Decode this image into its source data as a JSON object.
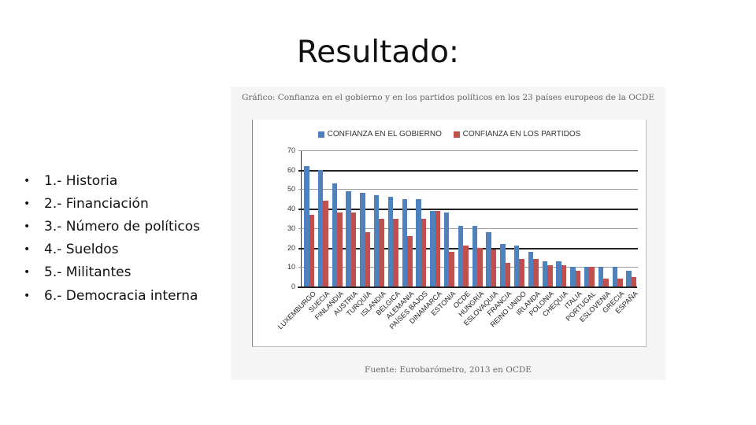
{
  "slide": {
    "title": "Resultado:",
    "bullets": [
      "1.- Historia",
      "2.- Financiación",
      "3.- Número de políticos",
      "4.- Sueldos",
      "5.- Militantes",
      "6.- Democracia interna"
    ]
  },
  "figure": {
    "caption": "Gráfico: Confianza en el gobierno y en los partidos políticos en los 23 países europeos de la OCDE",
    "source": "Fuente: Eurobarómetro, 2013 en OCDE"
  },
  "chart_data": {
    "type": "bar",
    "title": "Gráfico: Confianza en el gobierno y en los partidos políticos en los 23 países europeos de la OCDE",
    "xlabel": "",
    "ylabel": "",
    "ylim": [
      0,
      70
    ],
    "yticks": [
      0,
      10,
      20,
      30,
      40,
      50,
      60,
      70
    ],
    "grid": true,
    "legend_position": "top",
    "categories": [
      "LUXEMBURGO",
      "SUECIA",
      "FINLANDIA",
      "AUSTRIA",
      "TURQUÍA",
      "ISLANDIA",
      "BÉLGICA",
      "ALEMANIA",
      "PAÍSES BAJOS",
      "DINAMARCA",
      "ESTONIA",
      "OCDE",
      "HUNGRÍA",
      "ESLOVAQUIA",
      "FRANCIA",
      "REINO UNIDO",
      "IRLANDA",
      "POLONIA",
      "CHEQUIA",
      "ITALIA",
      "PORTUGAL",
      "ESLOVENIA",
      "GRECIA",
      "ESPAÑA"
    ],
    "series": [
      {
        "name": "CONFIANZA EN EL GOBIERNO",
        "color": "#4f81bd",
        "values": [
          62,
          60,
          53,
          49,
          48,
          47,
          46,
          45,
          45,
          39,
          38,
          31,
          31,
          28,
          22,
          21,
          18,
          13,
          13,
          10,
          10,
          10,
          10,
          8
        ]
      },
      {
        "name": "CONFIANZA EN LOS PARTIDOS",
        "color": "#c0504d",
        "values": [
          37,
          44,
          38,
          38,
          28,
          35,
          35,
          26,
          35,
          39,
          18,
          21,
          20,
          19,
          12,
          14,
          14,
          11,
          11,
          8,
          10,
          4,
          4,
          5
        ]
      }
    ],
    "source": "Fuente: Eurobarómetro, 2013 en OCDE"
  }
}
